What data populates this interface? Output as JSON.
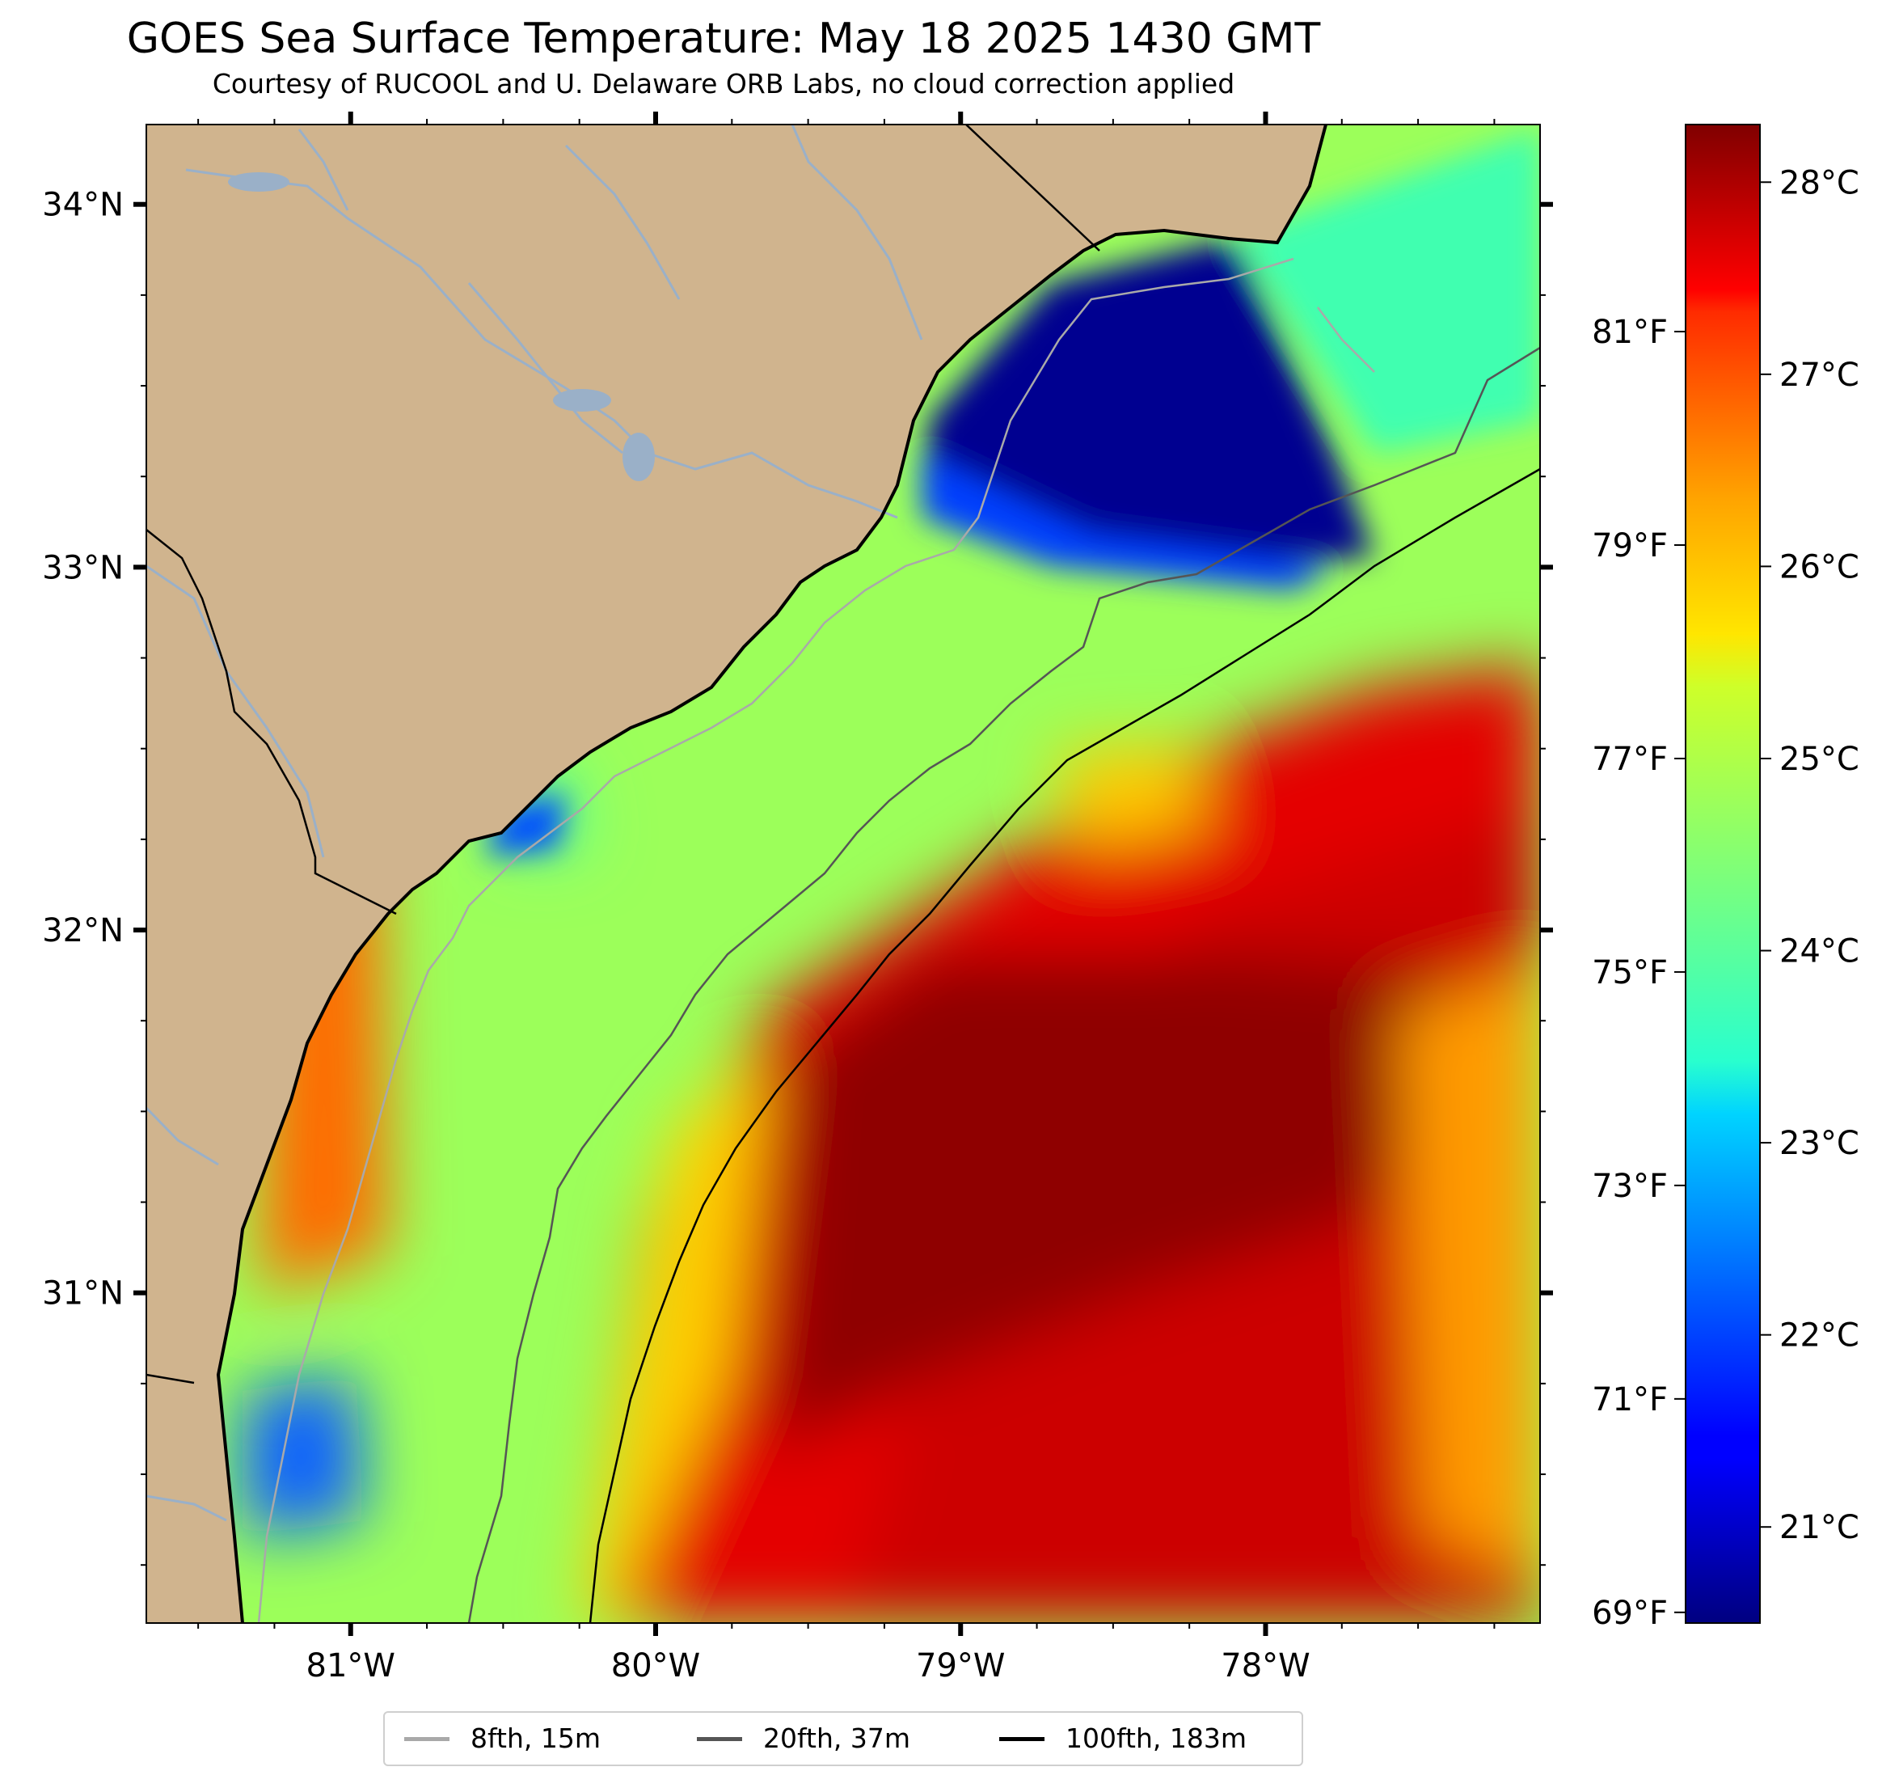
{
  "header": {
    "title": "GOES Sea Surface Temperature: May 18 2025 1430 GMT",
    "subtitle": "Courtesy of RUCOOL and U. Delaware ORB Labs, no cloud correction applied"
  },
  "map": {
    "lon_range": [
      -81.67,
      -77.1
    ],
    "lat_range": [
      30.09,
      34.22
    ],
    "lon_ticks": [
      {
        "value": -81,
        "label": "81°W"
      },
      {
        "value": -80,
        "label": "80°W"
      },
      {
        "value": -79,
        "label": "79°W"
      },
      {
        "value": -78,
        "label": "78°W"
      }
    ],
    "lat_ticks": [
      {
        "value": 34,
        "label": "34°N"
      },
      {
        "value": 33,
        "label": "33°N"
      },
      {
        "value": 32,
        "label": "32°N"
      },
      {
        "value": 31,
        "label": "31°N"
      }
    ],
    "colors": {
      "land": "#d0b48e",
      "coastline": "#000000",
      "rivers": "#9ab0c8",
      "no_data": "#ffffff"
    }
  },
  "colorbar": {
    "range_c": [
      20.5,
      28.3
    ],
    "colormap": "jet",
    "celsius_ticks": [
      {
        "value": 21,
        "label": "21°C"
      },
      {
        "value": 22,
        "label": "22°C"
      },
      {
        "value": 23,
        "label": "23°C"
      },
      {
        "value": 24,
        "label": "24°C"
      },
      {
        "value": 25,
        "label": "25°C"
      },
      {
        "value": 26,
        "label": "26°C"
      },
      {
        "value": 27,
        "label": "27°C"
      },
      {
        "value": 28,
        "label": "28°C"
      }
    ],
    "fahrenheit_ticks": [
      {
        "value": 69,
        "label": "69°F"
      },
      {
        "value": 71,
        "label": "71°F"
      },
      {
        "value": 73,
        "label": "73°F"
      },
      {
        "value": 75,
        "label": "75°F"
      },
      {
        "value": 77,
        "label": "77°F"
      },
      {
        "value": 79,
        "label": "79°F"
      },
      {
        "value": 81,
        "label": "81°F"
      }
    ]
  },
  "legend": {
    "items": [
      {
        "label": "8fth, 15m",
        "color": "#a9a9a9"
      },
      {
        "label": "20fth, 37m",
        "color": "#555555"
      },
      {
        "label": "100fth, 183m",
        "color": "#000000"
      }
    ]
  }
}
